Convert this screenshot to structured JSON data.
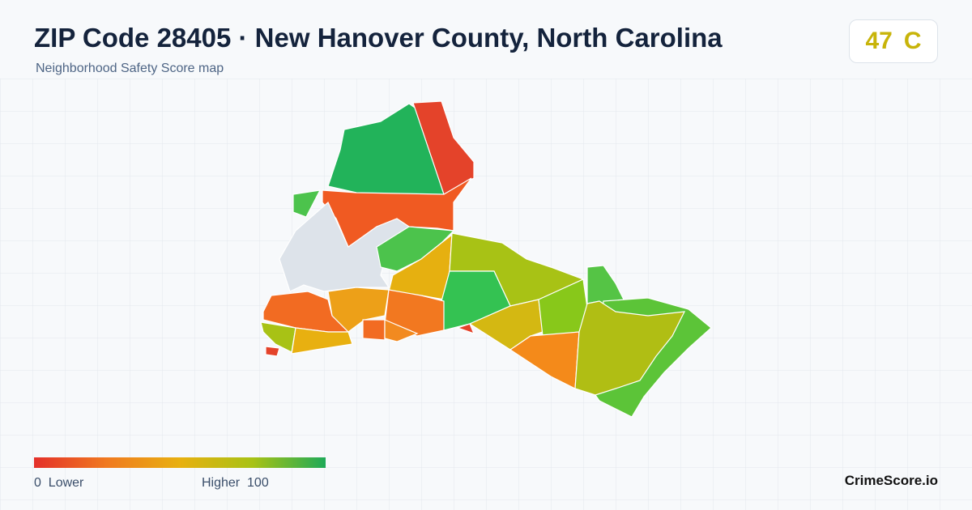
{
  "header": {
    "title": "ZIP Code 28405 · New Hanover County, North Carolina",
    "subtitle": "Neighborhood Safety Score map"
  },
  "score": {
    "value": 47,
    "grade": "C"
  },
  "legend": {
    "min": 0,
    "min_label": "Lower",
    "max_label": "Higher",
    "max": 100
  },
  "brand": "CrimeScore.io"
}
